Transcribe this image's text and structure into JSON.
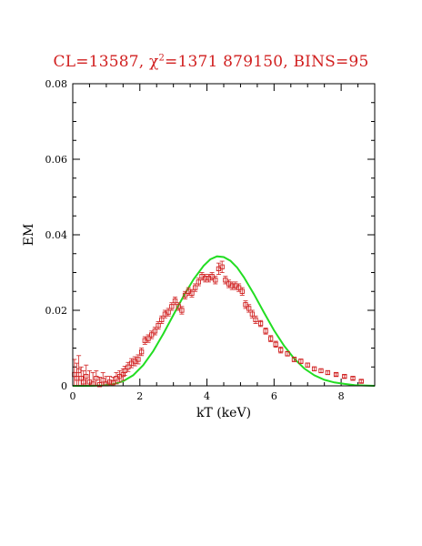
{
  "chart_data": {
    "type": "scatter",
    "title": {
      "cl": "CL=13587, ",
      "chi_label": "χ",
      "chi_sup": "2",
      "chi_value": "=1371 879150, BINS=95"
    },
    "xlabel": "kT  (keV)",
    "ylabel": "EM",
    "xlim": [
      0,
      9
    ],
    "ylim": [
      0,
      0.08
    ],
    "x_ticks": [
      0,
      2,
      4,
      6,
      8
    ],
    "y_ticks": [
      0,
      0.02,
      0.04,
      0.06,
      0.08
    ],
    "x_tick_labels": [
      "0",
      "2",
      "4",
      "6",
      "8"
    ],
    "y_tick_labels": [
      "0",
      "0.02",
      "0.04",
      "0.06",
      "0.08"
    ],
    "colors": {
      "data": "#d01f1f",
      "model": "#22dd22",
      "title": "#d11f1f"
    },
    "series": [
      {
        "kind": "data-points-with-errorbars",
        "x": [
          0.05,
          0.12,
          0.18,
          0.25,
          0.32,
          0.4,
          0.5,
          0.6,
          0.7,
          0.8,
          0.9,
          1.0,
          1.1,
          1.2,
          1.3,
          1.4,
          1.5,
          1.55,
          1.65,
          1.75,
          1.85,
          1.95,
          2.05,
          2.15,
          2.25,
          2.35,
          2.45,
          2.55,
          2.65,
          2.75,
          2.85,
          2.95,
          3.05,
          3.15,
          3.25,
          3.35,
          3.45,
          3.55,
          3.65,
          3.75,
          3.85,
          3.95,
          4.05,
          4.15,
          4.25,
          4.35,
          4.45,
          4.55,
          4.65,
          4.75,
          4.85,
          4.95,
          5.05,
          5.15,
          5.25,
          5.35,
          5.45,
          5.6,
          5.75,
          5.9,
          6.05,
          6.2,
          6.4,
          6.6,
          6.8,
          7.0,
          7.2,
          7.4,
          7.6,
          7.85,
          8.1,
          8.35,
          8.6
        ],
        "y": [
          0.003,
          0.002,
          0.004,
          0.002,
          0.001,
          0.0025,
          0.001,
          0.0005,
          0.002,
          0.0003,
          0.0015,
          0.0005,
          0.001,
          0.0008,
          0.002,
          0.0025,
          0.003,
          0.004,
          0.005,
          0.006,
          0.0065,
          0.007,
          0.009,
          0.012,
          0.0125,
          0.0135,
          0.0145,
          0.016,
          0.0175,
          0.019,
          0.0195,
          0.021,
          0.0225,
          0.021,
          0.02,
          0.024,
          0.025,
          0.0245,
          0.026,
          0.0275,
          0.029,
          0.0285,
          0.0285,
          0.029,
          0.028,
          0.031,
          0.0315,
          0.028,
          0.027,
          0.0265,
          0.0265,
          0.026,
          0.025,
          0.0215,
          0.0205,
          0.019,
          0.0175,
          0.0165,
          0.0145,
          0.0125,
          0.011,
          0.0095,
          0.0085,
          0.007,
          0.0065,
          0.0055,
          0.0045,
          0.004,
          0.0035,
          0.003,
          0.0025,
          0.002,
          0.0012
        ],
        "err": [
          0.004,
          0.004,
          0.004,
          0.003,
          0.003,
          0.003,
          0.003,
          0.003,
          0.002,
          0.002,
          0.002,
          0.002,
          0.0015,
          0.0015,
          0.0015,
          0.0015,
          0.0015,
          0.0012,
          0.0012,
          0.0012,
          0.0012,
          0.0012,
          0.001,
          0.001,
          0.001,
          0.001,
          0.001,
          0.001,
          0.001,
          0.001,
          0.001,
          0.001,
          0.001,
          0.001,
          0.001,
          0.001,
          0.001,
          0.001,
          0.001,
          0.001,
          0.001,
          0.001,
          0.001,
          0.001,
          0.001,
          0.0015,
          0.0015,
          0.001,
          0.001,
          0.001,
          0.001,
          0.001,
          0.001,
          0.001,
          0.001,
          0.001,
          0.001,
          0.0008,
          0.0008,
          0.0008,
          0.0008,
          0.0008,
          0.0006,
          0.0006,
          0.0006,
          0.0005,
          0.0005,
          0.0005,
          0.0005,
          0.0004,
          0.0004,
          0.0004,
          0.0004
        ]
      },
      {
        "kind": "model-curve",
        "x": [
          0,
          0.5,
          0.9,
          1.2,
          1.5,
          1.8,
          2.1,
          2.4,
          2.7,
          3.0,
          3.3,
          3.6,
          3.9,
          4.1,
          4.3,
          4.5,
          4.7,
          4.9,
          5.1,
          5.4,
          5.7,
          6.0,
          6.3,
          6.6,
          6.9,
          7.2,
          7.5,
          7.8,
          8.1,
          8.4,
          8.7,
          9.0
        ],
        "y": [
          0,
          0,
          0.0001,
          0.0004,
          0.0012,
          0.0028,
          0.0055,
          0.0092,
          0.0138,
          0.0188,
          0.0237,
          0.0282,
          0.0318,
          0.0335,
          0.0343,
          0.0341,
          0.0331,
          0.0313,
          0.0288,
          0.0243,
          0.0194,
          0.0147,
          0.0106,
          0.0072,
          0.0046,
          0.0028,
          0.0016,
          0.0009,
          0.0005,
          0.0002,
          0.0001,
          0
        ]
      }
    ]
  }
}
